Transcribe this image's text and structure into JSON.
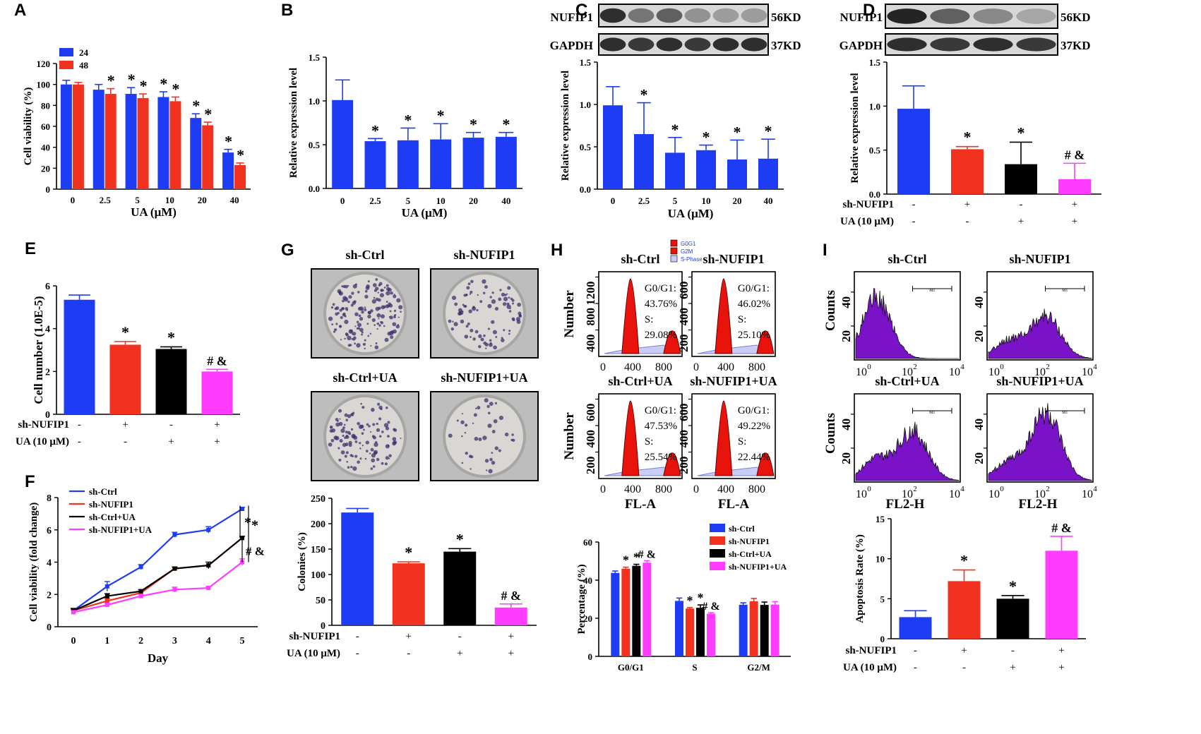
{
  "colors": {
    "blue": "#1f3cf5",
    "red": "#f0321e",
    "black": "#000000",
    "pink": "#ff3cff",
    "purple": "#7a12c8",
    "histred": "#e8140c",
    "gray": "#888888"
  },
  "conds": [
    "sh-Ctrl",
    "sh-NUFIP1",
    "sh-Ctrl+UA",
    "sh-NUFIP1+UA"
  ],
  "treat_rows": {
    "row1": "sh-NUFIP1",
    "row2": "UA (10 μM)",
    "r1": [
      "-",
      "+",
      "-",
      "+"
    ],
    "r2": [
      "-",
      "-",
      "+",
      "+"
    ]
  },
  "flow_h": {
    "ylabel": "Number",
    "xlabel": "FL-A",
    "xticks": [
      "0",
      "400",
      "800"
    ],
    "yticks": [
      [
        "400",
        "800",
        "1200"
      ],
      [
        "200",
        "400",
        "600"
      ],
      [
        "200",
        "400",
        "600"
      ],
      [
        "200",
        "400",
        "600"
      ]
    ],
    "legend": [
      "G0G1",
      "G2M",
      "S-Phase"
    ],
    "stats": [
      [
        "G0/G1:",
        "43.76%",
        "S:",
        "29.08%"
      ],
      [
        "G0/G1:",
        "46.02%",
        "S:",
        "25.10%"
      ],
      [
        "G0/G1:",
        "47.53%",
        "S:",
        "25.54%"
      ],
      [
        "G0/G1:",
        "49.22%",
        "S:",
        "22.44%"
      ]
    ]
  },
  "flow_i": {
    "ylabel": "Counts",
    "xlabel": "FL2-H",
    "xticks": [
      "10",
      "0",
      "10",
      "2",
      "10",
      "4"
    ],
    "yticks": [
      [
        "20",
        "40"
      ],
      [
        "20",
        "40"
      ],
      [
        "20",
        "40"
      ],
      [
        "20",
        "40"
      ]
    ],
    "marker": "M1"
  },
  "blots": {
    "C": {
      "rows": [
        {
          "label": "NUFIP1",
          "kd": "56KD"
        },
        {
          "label": "GAPDH",
          "kd": "37KD"
        }
      ],
      "lanes": 6
    },
    "D": {
      "rows": [
        {
          "label": "NUFIP1",
          "kd": "56KD"
        },
        {
          "label": "GAPDH",
          "kd": "37KD"
        }
      ],
      "lanes": 4
    }
  },
  "chart_data": [
    {
      "panel": "A",
      "type": "bar",
      "title": "",
      "xlabel": "UA (μM)",
      "ylabel": "Cell viability (%)",
      "categories": [
        "0",
        "2.5",
        "5",
        "10",
        "20",
        "40"
      ],
      "ylim": [
        0,
        120
      ],
      "yticks": [
        "0",
        "20",
        "40",
        "60",
        "80",
        "100",
        "120"
      ],
      "series": [
        {
          "name": "24",
          "values": [
            100,
            95,
            91,
            88,
            68,
            35
          ],
          "errors": [
            4,
            5,
            6,
            5,
            4,
            3
          ],
          "sig": [
            "",
            "",
            "*",
            "*",
            "*",
            "*"
          ]
        },
        {
          "name": "48",
          "values": [
            100,
            91,
            87,
            84,
            61,
            23
          ],
          "errors": [
            2,
            5,
            4,
            4,
            3,
            2
          ],
          "sig": [
            "",
            "*",
            "*",
            "*",
            "*",
            "*"
          ]
        }
      ]
    },
    {
      "panel": "B",
      "type": "bar",
      "title": "",
      "xlabel": "UA (μM)",
      "ylabel": "Relative expression level",
      "categories": [
        "0",
        "2.5",
        "5",
        "10",
        "20",
        "40"
      ],
      "ylim": [
        0,
        1.5
      ],
      "yticks": [
        "0.0",
        "0.5",
        "1.0",
        "1.5"
      ],
      "values": [
        1.01,
        0.54,
        0.55,
        0.56,
        0.58,
        0.59
      ],
      "errors": [
        0.23,
        0.03,
        0.14,
        0.18,
        0.06,
        0.05
      ],
      "sig": [
        "",
        "*",
        "*",
        "*",
        "*",
        "*"
      ]
    },
    {
      "panel": "C",
      "type": "bar",
      "title": "",
      "xlabel": "UA (μM)",
      "ylabel": "Relative expression level",
      "categories": [
        "0",
        "2.5",
        "5",
        "10",
        "20",
        "40"
      ],
      "ylim": [
        0,
        1.5
      ],
      "yticks": [
        "0.0",
        "0.5",
        "1.0",
        "1.5"
      ],
      "values": [
        0.99,
        0.65,
        0.43,
        0.46,
        0.35,
        0.36
      ],
      "errors": [
        0.22,
        0.37,
        0.18,
        0.06,
        0.23,
        0.23
      ],
      "sig": [
        "",
        "*",
        "*",
        "*",
        "*",
        "*"
      ]
    },
    {
      "panel": "D",
      "type": "bar",
      "title": "",
      "xlabel": "",
      "ylabel": "Relative expression level",
      "categories": [
        "sh-Ctrl",
        "sh-NUFIP1",
        "sh-Ctrl+UA",
        "sh-NUFIP1+UA"
      ],
      "ylim": [
        0,
        1.5
      ],
      "yticks": [
        "0.0",
        "0.5",
        "1.0",
        "1.5"
      ],
      "values": [
        0.97,
        0.51,
        0.34,
        0.17
      ],
      "errors": [
        0.26,
        0.03,
        0.25,
        0.18
      ],
      "sig": [
        "",
        "*",
        "*",
        "# &"
      ]
    },
    {
      "panel": "E",
      "type": "bar",
      "title": "",
      "xlabel": "",
      "ylabel": "Cell number (1.0E-5)",
      "categories": [
        "sh-Ctrl",
        "sh-NUFIP1",
        "sh-Ctrl+UA",
        "sh-NUFIP1+UA"
      ],
      "ylim": [
        0,
        6
      ],
      "yticks": [
        "0",
        "2",
        "4",
        "6"
      ],
      "values": [
        5.35,
        3.25,
        3.05,
        2.0
      ],
      "errors": [
        0.22,
        0.15,
        0.1,
        0.1
      ],
      "sig": [
        "",
        "*",
        "*",
        "# &"
      ]
    },
    {
      "panel": "F",
      "type": "line",
      "title": "",
      "xlabel": "Day",
      "ylabel": "Cell viability (fold change)",
      "x": [
        0,
        1,
        2,
        3,
        4,
        5
      ],
      "ylim": [
        0,
        8
      ],
      "yticks": [
        "0",
        "2",
        "4",
        "6",
        "8"
      ],
      "xticks": [
        "0",
        "1",
        "2",
        "3",
        "4",
        "5"
      ],
      "series": [
        {
          "name": "sh-Ctrl",
          "values": [
            1.0,
            2.5,
            3.7,
            5.7,
            6.0,
            7.3
          ],
          "errors": [
            0.15,
            0.3,
            0.15,
            0.15,
            0.2,
            0.1
          ]
        },
        {
          "name": "sh-NUFIP1",
          "values": [
            1.0,
            1.6,
            2.1,
            3.6,
            3.8,
            5.5
          ],
          "errors": [
            0.1,
            0.15,
            0.1,
            0.1,
            0.2,
            0.1
          ]
        },
        {
          "name": "sh-Ctrl+UA",
          "values": [
            1.0,
            1.9,
            2.2,
            3.6,
            3.8,
            5.5
          ],
          "errors": [
            0.1,
            0.15,
            0.1,
            0.1,
            0.2,
            0.1
          ]
        },
        {
          "name": "sh-NUFIP1+UA",
          "values": [
            0.9,
            1.35,
            1.9,
            2.3,
            2.4,
            4.0
          ],
          "errors": [
            0.1,
            0.1,
            0.1,
            0.15,
            0.1,
            0.2
          ]
        }
      ],
      "annotations": [
        "*",
        "*",
        "# &"
      ]
    },
    {
      "panel": "G",
      "type": "bar",
      "title": "",
      "xlabel": "",
      "ylabel": "Colonies (%)",
      "categories": [
        "sh-Ctrl",
        "sh-NUFIP1",
        "sh-Ctrl+UA",
        "sh-NUFIP1+UA"
      ],
      "ylim": [
        0,
        250
      ],
      "yticks": [
        "0",
        "50",
        "100",
        "150",
        "200",
        "250"
      ],
      "values": [
        222,
        122,
        145,
        35
      ],
      "errors": [
        8,
        3,
        6,
        7
      ],
      "sig": [
        "",
        "*",
        "*",
        "# &"
      ]
    },
    {
      "panel": "H",
      "type": "bar",
      "title": "",
      "xlabel": "",
      "ylabel": "Percentage (%)",
      "categories": [
        "G0/G1",
        "S",
        "G2/M"
      ],
      "ylim": [
        0,
        60
      ],
      "yticks": [
        "0",
        "20",
        "40",
        "60"
      ],
      "series": [
        {
          "name": "sh-Ctrl",
          "values": [
            43.8,
            29.1,
            27.1
          ],
          "errors": [
            1.0,
            1.5,
            1.0
          ]
        },
        {
          "name": "sh-NUFIP1",
          "values": [
            46.0,
            25.1,
            28.9
          ],
          "errors": [
            0.8,
            0.5,
            1.5
          ]
        },
        {
          "name": "sh-Ctrl+UA",
          "values": [
            47.5,
            25.5,
            27.0
          ],
          "errors": [
            0.8,
            1.5,
            1.5
          ]
        },
        {
          "name": "sh-NUFIP1+UA",
          "values": [
            49.2,
            22.4,
            27.2
          ],
          "errors": [
            1.0,
            0.5,
            1.5
          ]
        }
      ],
      "sig": [
        "",
        "*",
        "*",
        "# &"
      ]
    },
    {
      "panel": "I",
      "type": "bar",
      "title": "",
      "xlabel": "",
      "ylabel": "Apoptosis Rate (%)",
      "categories": [
        "sh-Ctrl",
        "sh-NUFIP1",
        "sh-Ctrl+UA",
        "sh-NUFIP1+UA"
      ],
      "ylim": [
        0,
        15
      ],
      "yticks": [
        "0",
        "5",
        "10",
        "15"
      ],
      "values": [
        2.7,
        7.2,
        5.0,
        11.0
      ],
      "errors": [
        0.8,
        1.4,
        0.4,
        1.8
      ],
      "sig": [
        "",
        "*",
        "*",
        "# &"
      ]
    }
  ]
}
